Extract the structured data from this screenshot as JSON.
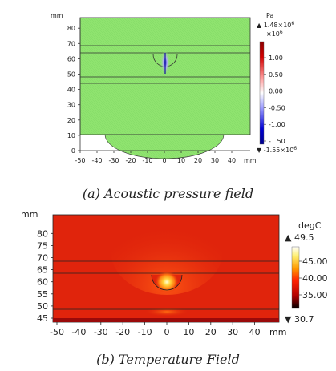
{
  "figure_a": {
    "caption": "(a) Acoustic pressure field",
    "y_unit": "mm",
    "x_unit": "mm",
    "x_ticks": [
      "-50",
      "-40",
      "-30",
      "-20",
      "-10",
      "0",
      "10",
      "20",
      "30",
      "40"
    ],
    "y_ticks": [
      "0",
      "10",
      "20",
      "30",
      "40",
      "50",
      "60",
      "70",
      "80"
    ],
    "colorbar": {
      "unit": "Pa",
      "max_label": "▲ 1.48×10",
      "max_exp": "6",
      "scale_label": "×10",
      "scale_exp": "6",
      "ticks": [
        "1.00",
        "0.50",
        "0.00",
        "-0.50",
        "-1.00",
        "-1.50"
      ],
      "min_label": "▼ -1.55×10",
      "min_exp": "6",
      "colors": {
        "high": "#8b0000",
        "mid": "#ffffff",
        "low": "#00008b"
      }
    },
    "field_color": "#8fe36f"
  },
  "figure_b": {
    "caption": "(b) Temperature Field",
    "y_unit": "mm",
    "x_unit": "mm",
    "x_ticks": [
      "-50",
      "-40",
      "-30",
      "-20",
      "-10",
      "0",
      "10",
      "20",
      "30",
      "40"
    ],
    "y_ticks": [
      "45",
      "50",
      "55",
      "60",
      "65",
      "70",
      "75",
      "80"
    ],
    "colorbar": {
      "unit": "degC",
      "max_label": "▲ 49.5",
      "ticks": [
        "45.00",
        "40.00",
        "35.00"
      ],
      "min_label": "▼ 30.7",
      "colors": {
        "high": "#ffffff",
        "mid": "#ff2000",
        "low": "#000000"
      }
    },
    "field_color": "#e0240c"
  }
}
